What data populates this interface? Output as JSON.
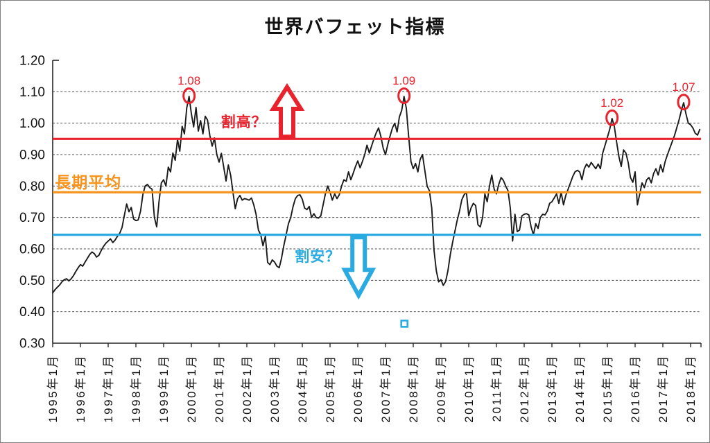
{
  "page": {
    "title": "世界バフェット指標"
  },
  "chart_data": {
    "type": "line",
    "title": "世界バフェット指標",
    "xlabel": "",
    "ylabel": "",
    "ylim": [
      0.3,
      1.2
    ],
    "x_range": [
      1995.0,
      2018.42
    ],
    "grid": "horizontal-dashed",
    "gridline_values": [
      0.4,
      0.5,
      0.6,
      0.7,
      0.8,
      0.9,
      1.0,
      1.1
    ],
    "y_tick_labels": [
      "1.20",
      "1.10",
      "1.00",
      "0.90",
      "0.80",
      "0.70",
      "0.60",
      "0.50",
      "0.40",
      "0.30"
    ],
    "y_tick_values": [
      1.2,
      1.1,
      1.0,
      0.9,
      0.8,
      0.7,
      0.6,
      0.5,
      0.4,
      0.3
    ],
    "x_tick_years": [
      1995,
      1996,
      1997,
      1998,
      1999,
      2000,
      2001,
      2002,
      2003,
      2004,
      2005,
      2006,
      2007,
      2008,
      2009,
      2010,
      2011,
      2012,
      2013,
      2014,
      2015,
      2016,
      2017,
      2018
    ],
    "x_tick_labels": [
      "1995年1月",
      "1996年1月",
      "1997年1月",
      "1998年1月",
      "1999年1月",
      "2000年1月",
      "2001年1月",
      "2002年1月",
      "2003年1月",
      "2004年1月",
      "2005年1月",
      "2006年1月",
      "2007年1月",
      "2008年1月",
      "2009年1月",
      "2010年1月",
      "2011年1月",
      "2012年1月",
      "2013年1月",
      "2014年1月",
      "2015年1月",
      "2016年1月",
      "2017年1月",
      "2018年1月"
    ],
    "series": [
      {
        "name": "世界バフェット指標",
        "color": "#1a1a1a",
        "start": "1995-01",
        "frequency": "monthly",
        "values": [
          0.46,
          0.47,
          0.478,
          0.485,
          0.495,
          0.502,
          0.505,
          0.498,
          0.505,
          0.515,
          0.528,
          0.54,
          0.55,
          0.545,
          0.558,
          0.57,
          0.582,
          0.59,
          0.585,
          0.574,
          0.58,
          0.595,
          0.608,
          0.618,
          0.625,
          0.632,
          0.62,
          0.628,
          0.64,
          0.65,
          0.668,
          0.706,
          0.743,
          0.718,
          0.732,
          0.695,
          0.69,
          0.692,
          0.72,
          0.772,
          0.8,
          0.805,
          0.795,
          0.79,
          0.7,
          0.67,
          0.75,
          0.81,
          0.82,
          0.8,
          0.86,
          0.845,
          0.905,
          0.882,
          0.948,
          0.911,
          0.99,
          0.966,
          1.048,
          1.085,
          1.03,
          0.988,
          1.05,
          0.975,
          1.008,
          0.966,
          1.022,
          1.01,
          0.96,
          0.927,
          0.953,
          0.9,
          0.876,
          0.904,
          0.86,
          0.816,
          0.867,
          0.834,
          0.78,
          0.728,
          0.76,
          0.77,
          0.755,
          0.76,
          0.758,
          0.755,
          0.762,
          0.74,
          0.71,
          0.66,
          0.645,
          0.61,
          0.64,
          0.557,
          0.55,
          0.565,
          0.558,
          0.545,
          0.54,
          0.57,
          0.61,
          0.645,
          0.68,
          0.7,
          0.735,
          0.76,
          0.77,
          0.772,
          0.758,
          0.73,
          0.725,
          0.735,
          0.7,
          0.712,
          0.7,
          0.698,
          0.705,
          0.74,
          0.775,
          0.8,
          0.78,
          0.755,
          0.775,
          0.76,
          0.772,
          0.8,
          0.82,
          0.815,
          0.845,
          0.82,
          0.84,
          0.862,
          0.88,
          0.858,
          0.878,
          0.9,
          0.93,
          0.905,
          0.928,
          0.95,
          0.97,
          0.985,
          0.958,
          0.92,
          0.9,
          0.932,
          0.96,
          0.985,
          1.0,
          0.972,
          1.02,
          1.04,
          1.085,
          1.048,
          0.96,
          0.878,
          0.855,
          0.872,
          0.845,
          0.885,
          0.9,
          0.85,
          0.8,
          0.785,
          0.73,
          0.595,
          0.53,
          0.495,
          0.502,
          0.484,
          0.496,
          0.53,
          0.58,
          0.62,
          0.655,
          0.69,
          0.72,
          0.756,
          0.772,
          0.78,
          0.705,
          0.73,
          0.745,
          0.738,
          0.677,
          0.67,
          0.7,
          0.775,
          0.75,
          0.8,
          0.835,
          0.79,
          0.775,
          0.805,
          0.827,
          0.818,
          0.8,
          0.785,
          0.73,
          0.625,
          0.71,
          0.655,
          0.66,
          0.705,
          0.71,
          0.712,
          0.708,
          0.67,
          0.645,
          0.68,
          0.665,
          0.7,
          0.71,
          0.708,
          0.72,
          0.745,
          0.75,
          0.762,
          0.775,
          0.745,
          0.78,
          0.74,
          0.77,
          0.79,
          0.81,
          0.83,
          0.845,
          0.85,
          0.845,
          0.82,
          0.855,
          0.87,
          0.86,
          0.875,
          0.865,
          0.855,
          0.87,
          0.855,
          0.905,
          0.93,
          0.955,
          0.98,
          1.015,
          0.99,
          0.94,
          0.893,
          0.862,
          0.915,
          0.905,
          0.875,
          0.827,
          0.812,
          0.845,
          0.74,
          0.775,
          0.81,
          0.795,
          0.82,
          0.827,
          0.81,
          0.84,
          0.855,
          0.835,
          0.867,
          0.845,
          0.878,
          0.9,
          0.92,
          0.94,
          0.96,
          0.985,
          1.01,
          1.04,
          1.065,
          1.03,
          1.0,
          0.995,
          0.985,
          0.968,
          0.962,
          0.98
        ]
      }
    ],
    "reference_lines": [
      {
        "id": "overvalued-line",
        "value": 0.95,
        "color": "#e8232d"
      },
      {
        "id": "longterm-average-line",
        "value": 0.78,
        "color": "#f7941d",
        "label": "長期平均"
      },
      {
        "id": "undervalued-line",
        "value": 0.645,
        "color": "#29abe2"
      }
    ],
    "annotations": {
      "peaks": [
        {
          "label": "1.08",
          "x": 1999.917,
          "value": 1.085
        },
        {
          "label": "1.09",
          "x": 2007.667,
          "value": 1.085
        },
        {
          "label": "1.02",
          "x": 2015.167,
          "value": 1.015
        },
        {
          "label": "1.07",
          "x": 2017.75,
          "value": 1.065
        }
      ],
      "texts": [
        {
          "id": "overvalued",
          "text": "割高？",
          "color": "#e8232d",
          "x": 2001.07,
          "value": 1.005
        },
        {
          "id": "undervalued",
          "text": "割安？",
          "color": "#29abe2",
          "x": 2003.73,
          "value": 0.578
        },
        {
          "id": "longterm-average",
          "text": "長期平均",
          "color": "#f7941d",
          "x": 1995.08,
          "value": 0.816
        }
      ],
      "arrows": [
        {
          "id": "up-arrow",
          "direction": "up",
          "color": "#e8232d",
          "x": 2003.45,
          "value_top": 1.115,
          "value_bottom": 0.957
        },
        {
          "id": "down-arrow",
          "direction": "down",
          "color": "#29abe2",
          "x": 2006.03,
          "value_top": 0.637,
          "value_bottom": 0.452
        }
      ],
      "stray_marker": {
        "x": 2007.68,
        "value": 0.362,
        "color": "#29abe2"
      }
    }
  }
}
